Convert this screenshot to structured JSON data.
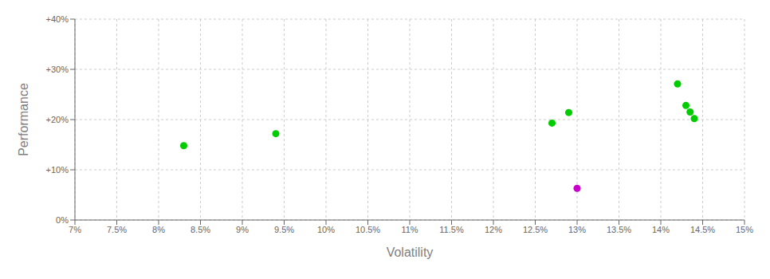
{
  "chart_data": {
    "type": "scatter",
    "xlabel": "Volatility",
    "ylabel": "Performance",
    "xlim": [
      0.07,
      0.15
    ],
    "ylim": [
      0.0,
      0.4
    ],
    "xticks": [
      {
        "value": 0.07,
        "label": "7%"
      },
      {
        "value": 0.075,
        "label": "7.5%"
      },
      {
        "value": 0.08,
        "label": "8%"
      },
      {
        "value": 0.085,
        "label": "8.5%"
      },
      {
        "value": 0.09,
        "label": "9%"
      },
      {
        "value": 0.095,
        "label": "9.5%"
      },
      {
        "value": 0.1,
        "label": "10%"
      },
      {
        "value": 0.105,
        "label": "10.5%"
      },
      {
        "value": 0.11,
        "label": "11%"
      },
      {
        "value": 0.115,
        "label": "11.5%"
      },
      {
        "value": 0.12,
        "label": "12%"
      },
      {
        "value": 0.125,
        "label": "12.5%"
      },
      {
        "value": 0.13,
        "label": "13%"
      },
      {
        "value": 0.135,
        "label": "13.5%"
      },
      {
        "value": 0.14,
        "label": "14%"
      },
      {
        "value": 0.145,
        "label": "14.5%"
      },
      {
        "value": 0.15,
        "label": "15%"
      }
    ],
    "yticks": [
      {
        "value": 0.0,
        "label": "0%"
      },
      {
        "value": 0.1,
        "label": "+10%"
      },
      {
        "value": 0.2,
        "label": "+20%"
      },
      {
        "value": 0.3,
        "label": "+30%"
      },
      {
        "value": 0.4,
        "label": "+40%"
      }
    ],
    "grid": true,
    "series": [
      {
        "color": "#00cc00",
        "x": [
          0.083,
          0.094,
          0.127,
          0.129,
          0.142,
          0.143,
          0.1435,
          0.144
        ],
        "values": [
          0.148,
          0.172,
          0.193,
          0.214,
          0.271,
          0.228,
          0.215,
          0.202
        ]
      },
      {
        "color": "#cc00cc",
        "x": [
          0.13
        ],
        "values": [
          0.063
        ]
      }
    ]
  }
}
